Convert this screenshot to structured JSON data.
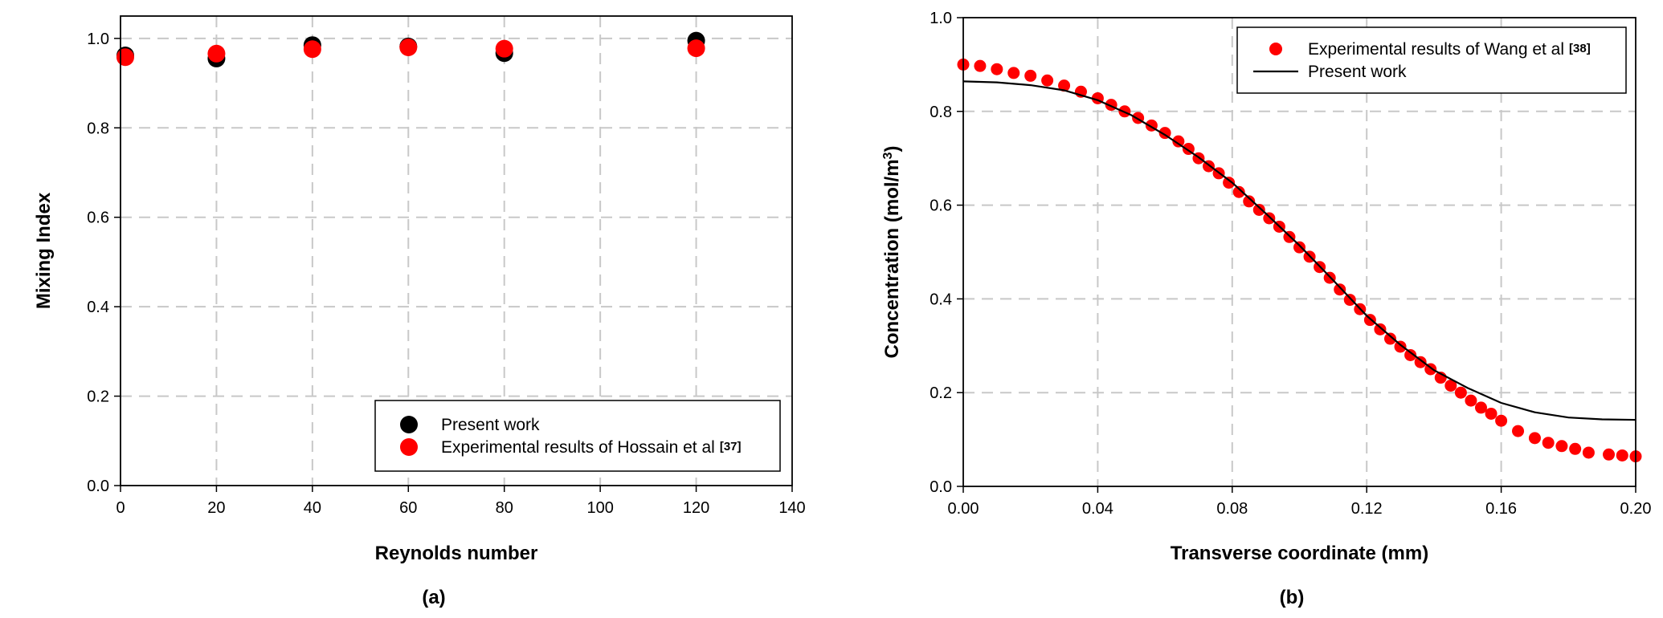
{
  "chart_data": [
    {
      "type": "scatter",
      "panel_label": "(a)",
      "xlabel": "Reynolds number",
      "ylabel": "Mixing Index",
      "xlim": [
        0,
        140
      ],
      "ylim": [
        0,
        1.05
      ],
      "xticks": [
        "0",
        "20",
        "40",
        "60",
        "80",
        "100",
        "120",
        "140"
      ],
      "yticks": [
        "0.0",
        "0.2",
        "0.4",
        "0.6",
        "0.8",
        "1.0"
      ],
      "grid": "dashed",
      "legend_position": "bottom-right",
      "series": [
        {
          "name": "Present work",
          "color": "#000000",
          "marker": "circle",
          "points": [
            [
              1,
              0.962
            ],
            [
              20,
              0.955
            ],
            [
              40,
              0.985
            ],
            [
              60,
              0.982
            ],
            [
              80,
              0.967
            ],
            [
              120,
              0.995
            ]
          ]
        },
        {
          "name": "Experimental results of Hossain et al",
          "name_ref": "[37]",
          "color": "#ff0000",
          "marker": "circle",
          "points": [
            [
              1,
              0.958
            ],
            [
              20,
              0.966
            ],
            [
              40,
              0.976
            ],
            [
              60,
              0.98
            ],
            [
              80,
              0.977
            ],
            [
              120,
              0.978
            ]
          ]
        }
      ]
    },
    {
      "type": "line+scatter",
      "panel_label": "(b)",
      "xlabel": "Transverse coordinate (mm)",
      "ylabel": "Concentration (mol/m",
      "ylabel_sup": "3",
      "ylabel_close": ")",
      "xlim": [
        0,
        0.2
      ],
      "ylim": [
        0,
        1.0
      ],
      "xticks": [
        "0.00",
        "0.04",
        "0.08",
        "0.12",
        "0.16",
        "0.20"
      ],
      "yticks": [
        "0.0",
        "0.2",
        "0.4",
        "0.6",
        "0.8",
        "1.0"
      ],
      "grid": "dashed",
      "legend_position": "top-right",
      "series": [
        {
          "name": "Experimental results of Wang et al",
          "name_ref": "[38]",
          "color": "#ff0000",
          "marker": "circle",
          "points": [
            [
              0.0,
              0.9
            ],
            [
              0.005,
              0.897
            ],
            [
              0.01,
              0.89
            ],
            [
              0.015,
              0.882
            ],
            [
              0.02,
              0.876
            ],
            [
              0.025,
              0.866
            ],
            [
              0.03,
              0.855
            ],
            [
              0.035,
              0.842
            ],
            [
              0.04,
              0.828
            ],
            [
              0.044,
              0.814
            ],
            [
              0.048,
              0.8
            ],
            [
              0.052,
              0.786
            ],
            [
              0.056,
              0.77
            ],
            [
              0.06,
              0.754
            ],
            [
              0.064,
              0.736
            ],
            [
              0.067,
              0.72
            ],
            [
              0.07,
              0.7
            ],
            [
              0.073,
              0.683
            ],
            [
              0.076,
              0.668
            ],
            [
              0.079,
              0.648
            ],
            [
              0.082,
              0.628
            ],
            [
              0.085,
              0.608
            ],
            [
              0.088,
              0.59
            ],
            [
              0.091,
              0.572
            ],
            [
              0.094,
              0.554
            ],
            [
              0.097,
              0.532
            ],
            [
              0.1,
              0.51
            ],
            [
              0.103,
              0.49
            ],
            [
              0.106,
              0.468
            ],
            [
              0.109,
              0.445
            ],
            [
              0.112,
              0.42
            ],
            [
              0.115,
              0.398
            ],
            [
              0.118,
              0.378
            ],
            [
              0.121,
              0.355
            ],
            [
              0.124,
              0.335
            ],
            [
              0.127,
              0.315
            ],
            [
              0.13,
              0.298
            ],
            [
              0.133,
              0.28
            ],
            [
              0.136,
              0.265
            ],
            [
              0.139,
              0.25
            ],
            [
              0.142,
              0.232
            ],
            [
              0.145,
              0.215
            ],
            [
              0.148,
              0.2
            ],
            [
              0.151,
              0.183
            ],
            [
              0.154,
              0.168
            ],
            [
              0.157,
              0.155
            ],
            [
              0.16,
              0.14
            ],
            [
              0.165,
              0.118
            ],
            [
              0.17,
              0.103
            ],
            [
              0.174,
              0.093
            ],
            [
              0.178,
              0.086
            ],
            [
              0.182,
              0.08
            ],
            [
              0.186,
              0.072
            ],
            [
              0.192,
              0.068
            ],
            [
              0.196,
              0.066
            ],
            [
              0.2,
              0.064
            ]
          ]
        },
        {
          "name": "Present work",
          "color": "#000000",
          "marker": "line",
          "points": [
            [
              0.0,
              0.864
            ],
            [
              0.01,
              0.862
            ],
            [
              0.02,
              0.856
            ],
            [
              0.03,
              0.845
            ],
            [
              0.04,
              0.824
            ],
            [
              0.05,
              0.792
            ],
            [
              0.06,
              0.75
            ],
            [
              0.07,
              0.702
            ],
            [
              0.08,
              0.648
            ],
            [
              0.09,
              0.582
            ],
            [
              0.1,
              0.514
            ],
            [
              0.11,
              0.44
            ],
            [
              0.12,
              0.364
            ],
            [
              0.13,
              0.302
            ],
            [
              0.14,
              0.248
            ],
            [
              0.15,
              0.21
            ],
            [
              0.16,
              0.178
            ],
            [
              0.17,
              0.158
            ],
            [
              0.18,
              0.147
            ],
            [
              0.19,
              0.143
            ],
            [
              0.2,
              0.142
            ]
          ]
        }
      ]
    }
  ]
}
